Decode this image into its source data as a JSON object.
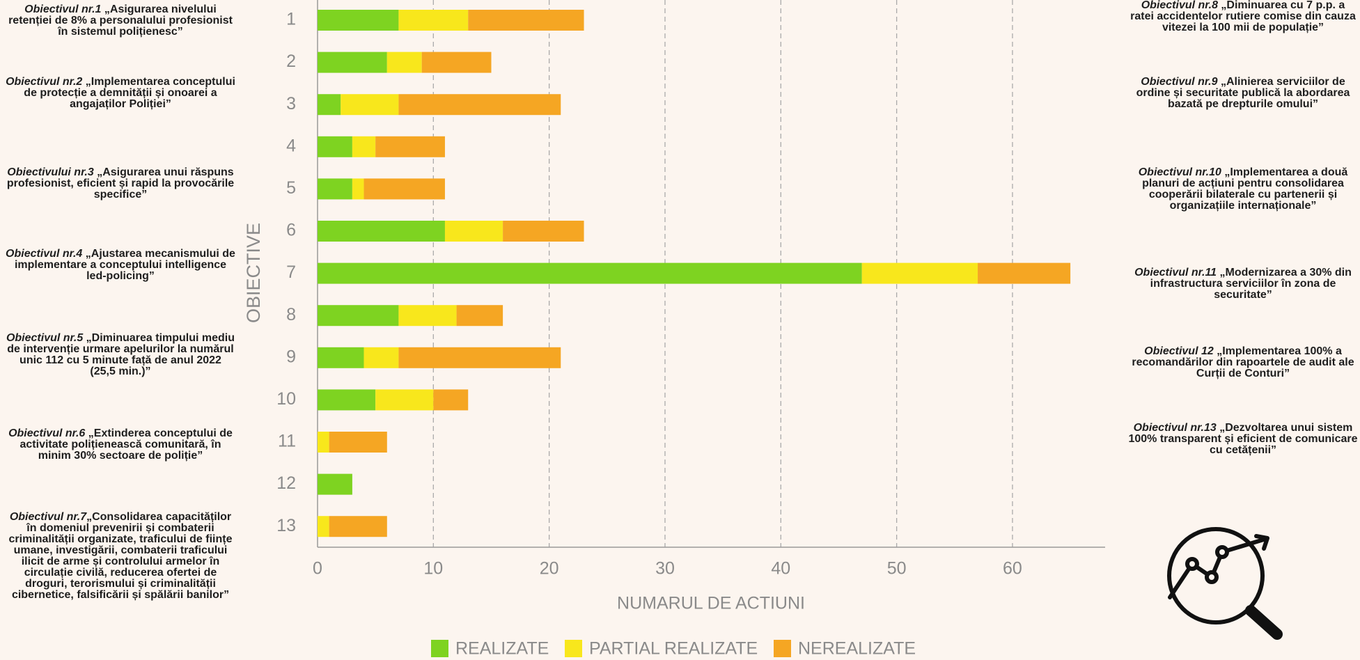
{
  "chart_data": {
    "type": "bar",
    "orientation": "horizontal",
    "stacked": true,
    "categories": [
      "1",
      "2",
      "3",
      "4",
      "5",
      "6",
      "7",
      "8",
      "9",
      "10",
      "11",
      "12",
      "13"
    ],
    "series": [
      {
        "name": "REALIZATE",
        "color": "#7ed321",
        "values": [
          7,
          6,
          2,
          3,
          3,
          11,
          47,
          7,
          4,
          5,
          0,
          3,
          0
        ]
      },
      {
        "name": "PARTIAL REALIZATE",
        "color": "#f8e71c",
        "values": [
          6,
          3,
          5,
          2,
          1,
          5,
          10,
          5,
          3,
          5,
          1,
          0,
          1
        ]
      },
      {
        "name": "NEREALIZATE",
        "color": "#f5a623",
        "values": [
          10,
          6,
          14,
          6,
          7,
          7,
          8,
          4,
          14,
          3,
          5,
          0,
          5
        ]
      }
    ],
    "xlim": [
      0,
      68
    ],
    "xticks": [
      0,
      10,
      20,
      30,
      40,
      50,
      60
    ],
    "xlabel": "NUMARUL DE ACTIUNI",
    "ylabel": "OBIECTIVE",
    "grid": true,
    "legend": "bottom"
  },
  "objectives": [
    {
      "prefix": "Obiectivul nr.1",
      "text": " „Asigurarea nivelului retenției de 8% a personalului profesionist în sistemul polițienesc”"
    },
    {
      "prefix": "Obiectivul nr.2",
      "text": " „Implementarea conceptului de protecție a demnității și onoarei a angajaților Poliției”"
    },
    {
      "prefix": "Obiectivului nr.3",
      "text": " „Asigurarea unui răspuns profesionist, eficient și rapid la provocările specifice”"
    },
    {
      "prefix": "Obiectivul nr.4",
      "text": " „Ajustarea mecanismului de implementare a conceptului intelligence led-policing”"
    },
    {
      "prefix": "Obiectivul nr.5",
      "text": " „Diminuarea timpului mediu de intervenție urmare apelurilor la numărul unic 112 cu 5 minute față de anul 2022 (25,5 min.)”"
    },
    {
      "prefix": "Obiectivul nr.6",
      "text": " „Extinderea conceptului de activitate polițienească comunitară, în minim 30% sectoare de poliție”"
    },
    {
      "prefix": "Obiectivul nr.7",
      "text": "„Consolidarea capacităților în domeniul prevenirii și combaterii criminalității organizate, traficului de ființe umane, investigării, combaterii traficului ilicit de arme și controlului armelor în circulație civilă, reducerea ofertei de droguri, terorismului și criminalității cibernetice, falsificării și spălării banilor”"
    },
    {
      "prefix": "Obiectivul nr.8",
      "text": " „Diminuarea cu 7 p.p. a ratei accidentelor rutiere comise din cauza vitezei la 100 mii de populație”"
    },
    {
      "prefix": "Obiectivul nr.9",
      "text": " „Alinierea serviciilor de ordine și securitate publică la abordarea bazată pe drepturile omului”"
    },
    {
      "prefix": "Obiectivul nr.10",
      "text": " „Implementarea a două planuri de acțiuni pentru consolidarea cooperării bilaterale cu partenerii și organizațiile internaționale”"
    },
    {
      "prefix": "Obiectivul nr.11",
      "text": " „Modernizarea a 30% din infrastructura serviciilor în zona de securitate”"
    },
    {
      "prefix": "Obiectivul 12",
      "text": " „Implementarea 100% a recomandărilor din rapoartele de audit ale Curții de Conturi”"
    },
    {
      "prefix": "Obiectivul nr.13",
      "text": " „Dezvoltarea unui sistem 100% transparent și eficient de comunicare cu cetățenii”"
    }
  ]
}
